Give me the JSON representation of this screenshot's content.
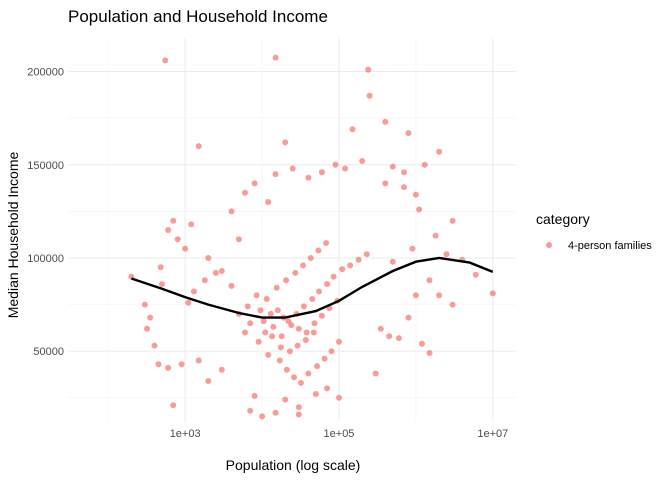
{
  "chart_data": {
    "type": "scatter",
    "title": "Population and Household Income",
    "xlabel": "Population (log scale)",
    "ylabel": "Median Household Income",
    "x_scale": "log10",
    "xlim": [
      30,
      20000000
    ],
    "ylim": [
      12000,
      218000
    ],
    "x_ticks": [
      1000,
      100000,
      10000000
    ],
    "x_tick_labels": [
      "1e+03",
      "1e+05",
      "1e+07"
    ],
    "y_ticks": [
      50000,
      100000,
      150000,
      200000
    ],
    "y_tick_labels": [
      "50000",
      "100000",
      "150000",
      "200000"
    ],
    "grid": true,
    "legend": {
      "title": "category",
      "position": "right",
      "entries": [
        {
          "label": "4-person families",
          "color": "#f8766d"
        }
      ]
    },
    "series": [
      {
        "name": "4-person families",
        "color": "#f8766d",
        "points": [
          [
            200,
            90000
          ],
          [
            550,
            206000
          ],
          [
            15000,
            207500
          ],
          [
            240000,
            201000
          ],
          [
            250000,
            187000
          ],
          [
            1500,
            160000
          ],
          [
            20000,
            162000
          ],
          [
            400000,
            173000
          ],
          [
            800000,
            167000
          ],
          [
            150000,
            169000
          ],
          [
            2000000,
            157000
          ],
          [
            1300000,
            150000
          ],
          [
            700000,
            146000
          ],
          [
            1000000,
            134000
          ],
          [
            3000000,
            120000
          ],
          [
            2500000,
            102000
          ],
          [
            4000000,
            99000
          ],
          [
            6000000,
            91000
          ],
          [
            10000000,
            81000
          ],
          [
            3000000,
            75000
          ],
          [
            1500000,
            49000
          ],
          [
            1200000,
            54000
          ],
          [
            600000,
            57000
          ],
          [
            300000,
            38000
          ],
          [
            100000,
            25000
          ],
          [
            700,
            21000
          ],
          [
            7000,
            18000
          ],
          [
            15000,
            17000
          ],
          [
            30000,
            16000
          ],
          [
            10000,
            15000
          ],
          [
            30000,
            20000
          ],
          [
            20000,
            24000
          ],
          [
            8000,
            26000
          ],
          [
            50000,
            27000
          ],
          [
            70000,
            30000
          ],
          [
            300,
            75000
          ],
          [
            350,
            68000
          ],
          [
            320,
            62000
          ],
          [
            400,
            53000
          ],
          [
            450,
            43000
          ],
          [
            500,
            86000
          ],
          [
            480,
            95000
          ],
          [
            600,
            115000
          ],
          [
            700,
            120000
          ],
          [
            800,
            110000
          ],
          [
            1000,
            105000
          ],
          [
            1200,
            118000
          ],
          [
            2000,
            100000
          ],
          [
            3000,
            93000
          ],
          [
            1500,
            45000
          ],
          [
            2000,
            34000
          ],
          [
            3000,
            40000
          ],
          [
            5000,
            110000
          ],
          [
            4000,
            125000
          ],
          [
            6000,
            135000
          ],
          [
            8000,
            140000
          ],
          [
            12000,
            130000
          ],
          [
            15000,
            145000
          ],
          [
            25000,
            148000
          ],
          [
            40000,
            143000
          ],
          [
            60000,
            146000
          ],
          [
            90000,
            150000
          ],
          [
            120000,
            148000
          ],
          [
            200000,
            152000
          ],
          [
            500000,
            149000
          ],
          [
            400000,
            140000
          ],
          [
            700000,
            138000
          ],
          [
            1100000,
            126000
          ],
          [
            1800000,
            112000
          ],
          [
            900000,
            105000
          ],
          [
            500000,
            98000
          ],
          [
            350000,
            62000
          ],
          [
            450000,
            58000
          ],
          [
            800000,
            68000
          ],
          [
            1000000,
            80000
          ],
          [
            2000000,
            80000
          ],
          [
            1500000,
            88000
          ],
          [
            600,
            41000
          ],
          [
            900,
            43000
          ],
          [
            1100,
            76000
          ],
          [
            1300,
            82000
          ],
          [
            1800,
            88000
          ],
          [
            2500,
            92000
          ],
          [
            4000,
            85000
          ],
          [
            6000,
            60000
          ],
          [
            9000,
            55000
          ],
          [
            11000,
            60000
          ],
          [
            14000,
            63000
          ],
          [
            18000,
            58000
          ],
          [
            22000,
            66000
          ],
          [
            28000,
            70000
          ],
          [
            35000,
            74000
          ],
          [
            45000,
            78000
          ],
          [
            55000,
            82000
          ],
          [
            70000,
            86000
          ],
          [
            85000,
            90000
          ],
          [
            110000,
            94000
          ],
          [
            140000,
            96000
          ],
          [
            180000,
            99000
          ],
          [
            230000,
            102000
          ],
          [
            13000,
            70000
          ],
          [
            16000,
            72000
          ],
          [
            19000,
            68000
          ],
          [
            24000,
            64000
          ],
          [
            30000,
            62000
          ],
          [
            38000,
            60000
          ],
          [
            48000,
            65000
          ],
          [
            60000,
            69000
          ],
          [
            75000,
            73000
          ],
          [
            95000,
            77000
          ],
          [
            12000,
            48000
          ],
          [
            17000,
            45000
          ],
          [
            21000,
            40000
          ],
          [
            26000,
            36000
          ],
          [
            32000,
            33000
          ],
          [
            40000,
            38000
          ],
          [
            52000,
            42000
          ],
          [
            65000,
            46000
          ],
          [
            80000,
            50000
          ],
          [
            100000,
            55000
          ],
          [
            7000,
            65000
          ],
          [
            9500,
            72000
          ],
          [
            11500,
            78000
          ],
          [
            15500,
            84000
          ],
          [
            20500,
            88000
          ],
          [
            27000,
            92000
          ],
          [
            34000,
            96000
          ],
          [
            43000,
            100000
          ],
          [
            54000,
            104000
          ],
          [
            68000,
            108000
          ],
          [
            5000,
            70000
          ],
          [
            6500,
            74000
          ],
          [
            8500,
            80000
          ],
          [
            10500,
            66000
          ],
          [
            13500,
            58000
          ],
          [
            17500,
            52000
          ],
          [
            23000,
            50000
          ],
          [
            29000,
            53000
          ],
          [
            37000,
            56000
          ],
          [
            47000,
            60000
          ]
        ]
      }
    ],
    "trend_line": {
      "name": "smooth fit",
      "color": "#000000",
      "points": [
        [
          200,
          89000
        ],
        [
          500,
          83500
        ],
        [
          1000,
          79000
        ],
        [
          2000,
          75000
        ],
        [
          5000,
          70500
        ],
        [
          10000,
          68000
        ],
        [
          20000,
          68000
        ],
        [
          50000,
          71500
        ],
        [
          100000,
          77000
        ],
        [
          200000,
          84500
        ],
        [
          500000,
          93000
        ],
        [
          1000000,
          98000
        ],
        [
          2000000,
          100000
        ],
        [
          5000000,
          97500
        ],
        [
          10000000,
          92500
        ]
      ]
    }
  }
}
